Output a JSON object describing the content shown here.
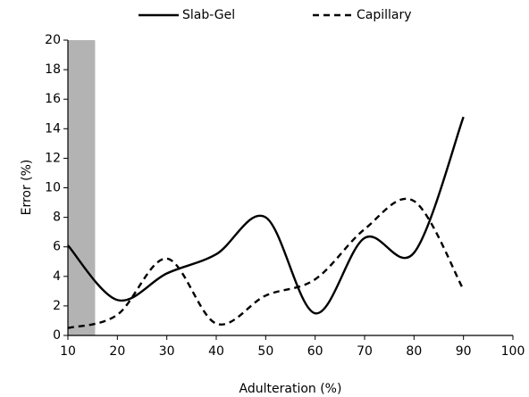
{
  "chart_data": {
    "type": "line",
    "x_label": "Adulteration (%)",
    "y_label": "Error (%)",
    "x": [
      10,
      20,
      30,
      40,
      50,
      60,
      70,
      80,
      90
    ],
    "series": [
      {
        "name": "Slab-Gel",
        "color": "#000000",
        "dash": "solid",
        "values": [
          6.1,
          2.4,
          4.2,
          5.5,
          8.0,
          1.5,
          6.6,
          5.6,
          14.8
        ]
      },
      {
        "name": "Capillary",
        "color": "#000000",
        "dash": "dashed",
        "values": [
          0.5,
          1.4,
          5.2,
          0.8,
          2.7,
          3.8,
          7.2,
          9.1,
          3.1
        ]
      }
    ],
    "xlim": [
      10,
      100
    ],
    "xticks": [
      10,
      20,
      30,
      40,
      50,
      60,
      70,
      80,
      90,
      100
    ],
    "ylim": [
      0,
      20
    ],
    "yticks": [
      0,
      2,
      4,
      6,
      8,
      10,
      12,
      14,
      16,
      18,
      20
    ],
    "shaded_xrange": [
      10,
      15.5
    ],
    "shade_color": "#b3b3b3",
    "smooth": true,
    "legend": "top"
  }
}
